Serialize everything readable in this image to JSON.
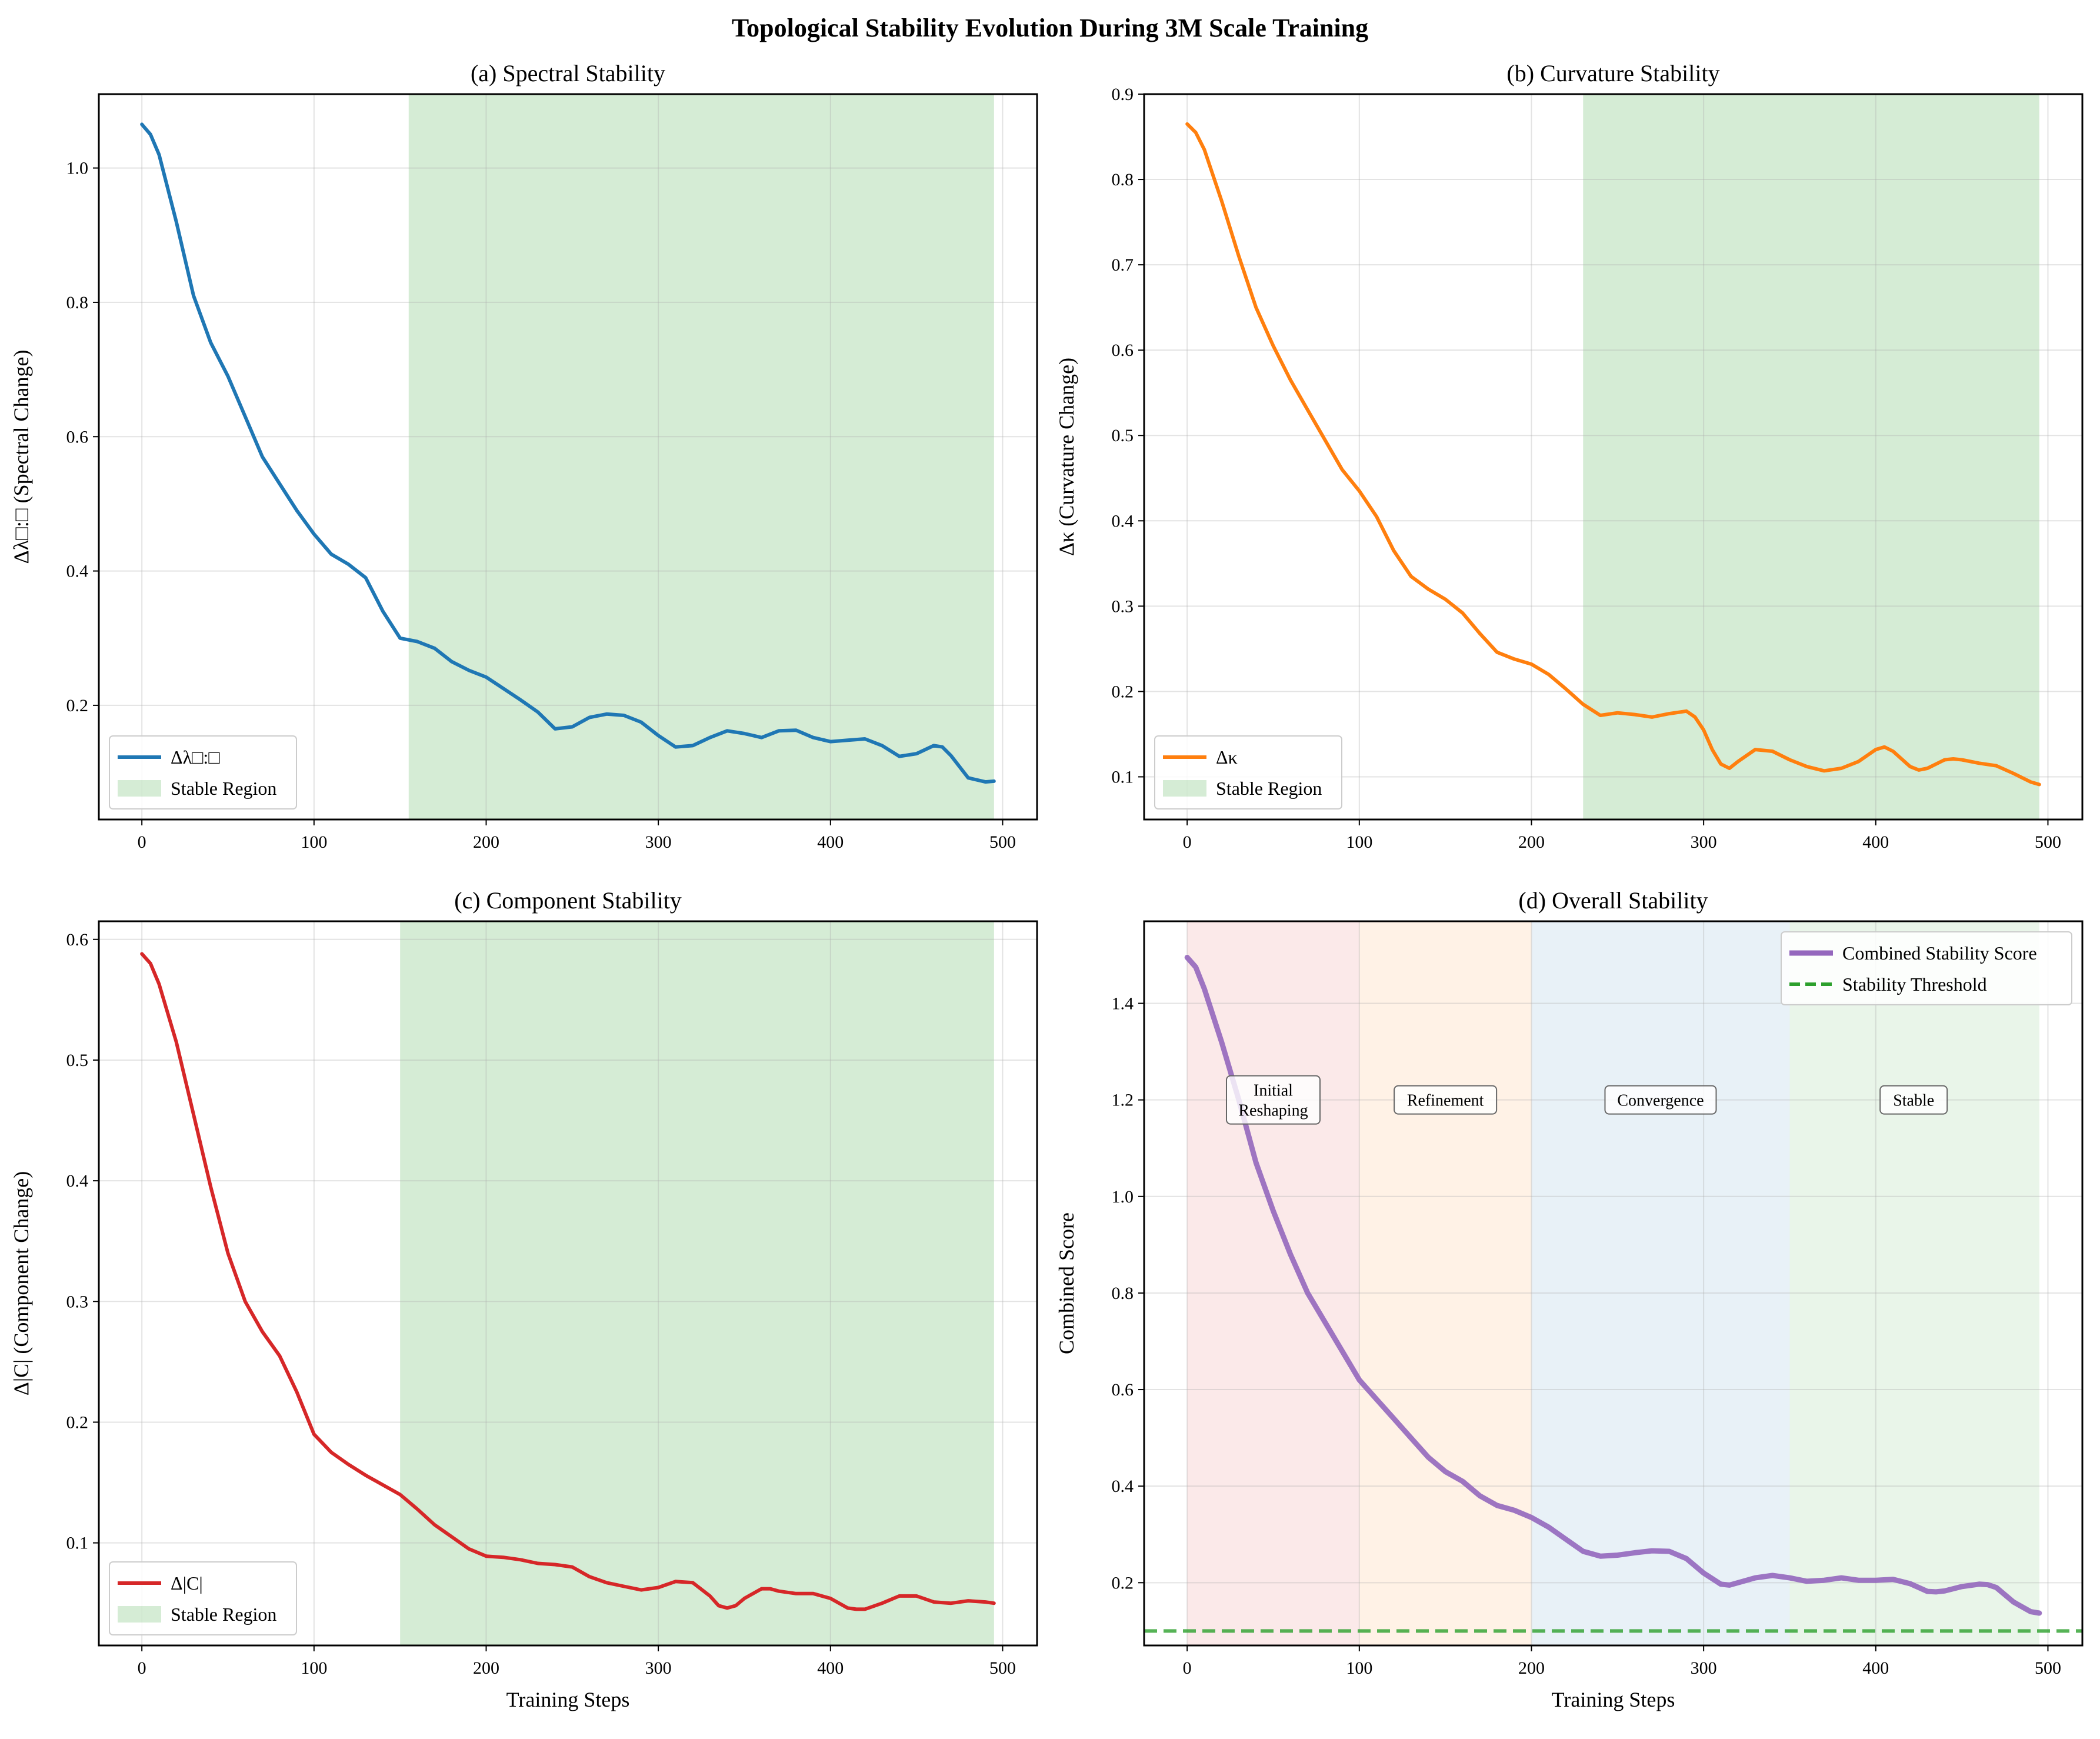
{
  "figure": {
    "suptitle": "Topological Stability Evolution During 3M Scale Training"
  },
  "chart_data": [
    {
      "type": "line",
      "title": "(a) Spectral Stability",
      "xlabel": "",
      "ylabel": "Δλ□:□ (Spectral Change)",
      "xlim": [
        -25,
        520
      ],
      "ylim": [
        0.03,
        1.11
      ],
      "xticks": [
        "0",
        "100",
        "200",
        "300",
        "400",
        "500"
      ],
      "yticks": [
        "0.2",
        "0.4",
        "0.6",
        "0.8",
        "1.0"
      ],
      "grid": true,
      "legend_position": "lower-left",
      "series": [
        {
          "name": "Δλ□:□",
          "color": "#1f77b4",
          "x": [
            0,
            5,
            10,
            20,
            30,
            40,
            50,
            60,
            70,
            80,
            90,
            100,
            110,
            120,
            130,
            140,
            150,
            160,
            170,
            180,
            190,
            200,
            210,
            220,
            230,
            240,
            250,
            260,
            270,
            280,
            290,
            300,
            310,
            320,
            330,
            340,
            350,
            360,
            370,
            380,
            390,
            400,
            410,
            420,
            430,
            440,
            450,
            460,
            465,
            470,
            480,
            490,
            495
          ],
          "y": [
            1.065,
            1.05,
            1.02,
            0.92,
            0.81,
            0.74,
            0.69,
            0.63,
            0.57,
            0.53,
            0.49,
            0.455,
            0.425,
            0.41,
            0.39,
            0.34,
            0.3,
            0.295,
            0.285,
            0.265,
            0.252,
            0.242,
            0.225,
            0.208,
            0.19,
            0.165,
            0.168,
            0.182,
            0.187,
            0.185,
            0.175,
            0.155,
            0.138,
            0.14,
            0.152,
            0.162,
            0.158,
            0.152,
            0.162,
            0.163,
            0.152,
            0.146,
            0.148,
            0.15,
            0.14,
            0.124,
            0.128,
            0.14,
            0.138,
            0.125,
            0.092,
            0.086,
            0.087
          ]
        }
      ],
      "shaded_regions": [
        {
          "name": "Stable Region",
          "x0": 155,
          "x1": 495,
          "color": "#2ca02c"
        }
      ]
    },
    {
      "type": "line",
      "title": "(b) Curvature Stability",
      "xlabel": "",
      "ylabel": "Δκ (Curvature Change)",
      "xlim": [
        -25,
        520
      ],
      "ylim": [
        0.05,
        0.9
      ],
      "xticks": [
        "0",
        "100",
        "200",
        "300",
        "400",
        "500"
      ],
      "yticks": [
        "0.1",
        "0.2",
        "0.3",
        "0.4",
        "0.5",
        "0.6",
        "0.7",
        "0.8",
        "0.9"
      ],
      "grid": true,
      "legend_position": "lower-left",
      "series": [
        {
          "name": "Δκ",
          "color": "#ff7f0e",
          "x": [
            0,
            5,
            10,
            20,
            30,
            40,
            50,
            60,
            70,
            80,
            90,
            100,
            110,
            120,
            130,
            140,
            150,
            160,
            170,
            180,
            190,
            200,
            210,
            220,
            230,
            240,
            250,
            260,
            270,
            280,
            290,
            295,
            300,
            305,
            310,
            315,
            320,
            330,
            340,
            350,
            360,
            370,
            380,
            390,
            400,
            405,
            410,
            420,
            425,
            430,
            440,
            445,
            450,
            460,
            470,
            480,
            490,
            495
          ],
          "y": [
            0.865,
            0.855,
            0.835,
            0.775,
            0.71,
            0.65,
            0.605,
            0.565,
            0.53,
            0.495,
            0.46,
            0.435,
            0.405,
            0.365,
            0.335,
            0.32,
            0.308,
            0.292,
            0.268,
            0.246,
            0.238,
            0.232,
            0.22,
            0.203,
            0.185,
            0.172,
            0.175,
            0.173,
            0.17,
            0.174,
            0.177,
            0.17,
            0.155,
            0.132,
            0.115,
            0.11,
            0.118,
            0.132,
            0.13,
            0.12,
            0.112,
            0.107,
            0.11,
            0.118,
            0.132,
            0.135,
            0.13,
            0.112,
            0.108,
            0.11,
            0.12,
            0.121,
            0.12,
            0.116,
            0.113,
            0.104,
            0.094,
            0.091
          ]
        }
      ],
      "shaded_regions": [
        {
          "name": "Stable Region",
          "x0": 230,
          "x1": 495,
          "color": "#2ca02c"
        }
      ]
    },
    {
      "type": "line",
      "title": "(c) Component Stability",
      "xlabel": "Training Steps",
      "ylabel": "Δ|C| (Component Change)",
      "xlim": [
        -25,
        520
      ],
      "ylim": [
        0.015,
        0.615
      ],
      "xticks": [
        "0",
        "100",
        "200",
        "300",
        "400",
        "500"
      ],
      "yticks": [
        "0.1",
        "0.2",
        "0.3",
        "0.4",
        "0.5",
        "0.6"
      ],
      "grid": true,
      "legend_position": "lower-left",
      "series": [
        {
          "name": "Δ|C|",
          "color": "#d62728",
          "x": [
            0,
            5,
            10,
            20,
            30,
            40,
            50,
            60,
            70,
            80,
            90,
            100,
            110,
            120,
            130,
            140,
            150,
            160,
            170,
            180,
            190,
            200,
            210,
            220,
            230,
            240,
            250,
            260,
            270,
            280,
            290,
            300,
            310,
            320,
            330,
            335,
            340,
            345,
            350,
            360,
            365,
            370,
            380,
            390,
            400,
            410,
            415,
            420,
            430,
            440,
            450,
            460,
            470,
            480,
            490,
            495
          ],
          "y": [
            0.588,
            0.58,
            0.563,
            0.515,
            0.455,
            0.395,
            0.34,
            0.3,
            0.275,
            0.255,
            0.225,
            0.19,
            0.175,
            0.165,
            0.156,
            0.148,
            0.14,
            0.128,
            0.115,
            0.105,
            0.095,
            0.089,
            0.088,
            0.086,
            0.083,
            0.082,
            0.08,
            0.072,
            0.067,
            0.064,
            0.061,
            0.063,
            0.068,
            0.067,
            0.056,
            0.048,
            0.046,
            0.048,
            0.054,
            0.062,
            0.062,
            0.06,
            0.058,
            0.058,
            0.054,
            0.046,
            0.045,
            0.045,
            0.05,
            0.056,
            0.056,
            0.051,
            0.05,
            0.052,
            0.051,
            0.05
          ]
        }
      ],
      "shaded_regions": [
        {
          "name": "Stable Region",
          "x0": 150,
          "x1": 495,
          "color": "#2ca02c"
        }
      ]
    },
    {
      "type": "line",
      "title": "(d) Overall Stability",
      "xlabel": "Training Steps",
      "ylabel": "Combined Score",
      "xlim": [
        -25,
        520
      ],
      "ylim": [
        0.07,
        1.57
      ],
      "xticks": [
        "0",
        "100",
        "200",
        "300",
        "400",
        "500"
      ],
      "yticks": [
        "0.2",
        "0.4",
        "0.6",
        "0.8",
        "1.0",
        "1.2",
        "1.4"
      ],
      "grid": true,
      "legend_position": "top-right",
      "series": [
        {
          "name": "Combined Stability Score",
          "color": "#9467bd",
          "x": [
            0,
            5,
            10,
            20,
            30,
            40,
            50,
            60,
            70,
            80,
            90,
            100,
            110,
            120,
            130,
            140,
            150,
            160,
            170,
            180,
            190,
            200,
            210,
            220,
            230,
            240,
            250,
            260,
            270,
            280,
            290,
            300,
            310,
            315,
            320,
            330,
            340,
            350,
            360,
            370,
            380,
            390,
            400,
            410,
            420,
            430,
            435,
            440,
            450,
            460,
            465,
            470,
            480,
            490,
            495
          ],
          "y": [
            1.495,
            1.475,
            1.43,
            1.32,
            1.2,
            1.07,
            0.97,
            0.88,
            0.8,
            0.74,
            0.68,
            0.62,
            0.58,
            0.54,
            0.5,
            0.46,
            0.43,
            0.41,
            0.38,
            0.36,
            0.35,
            0.335,
            0.315,
            0.29,
            0.265,
            0.255,
            0.257,
            0.262,
            0.266,
            0.265,
            0.25,
            0.22,
            0.197,
            0.195,
            0.2,
            0.21,
            0.215,
            0.21,
            0.203,
            0.205,
            0.21,
            0.205,
            0.205,
            0.207,
            0.198,
            0.182,
            0.181,
            0.183,
            0.192,
            0.197,
            0.196,
            0.19,
            0.16,
            0.14,
            0.137
          ]
        },
        {
          "name": "Stability Threshold",
          "color": "#2ca02c",
          "style": "dashed",
          "x": [
            -25,
            520
          ],
          "y": [
            0.1,
            0.1
          ]
        }
      ],
      "shaded_regions": [
        {
          "name": "Initial Reshaping",
          "x0": 0,
          "x1": 100,
          "color": "#d62728"
        },
        {
          "name": "Refinement",
          "x0": 100,
          "x1": 200,
          "color": "#ff7f0e"
        },
        {
          "name": "Convergence",
          "x0": 200,
          "x1": 350,
          "color": "#1f77b4"
        },
        {
          "name": "Stable",
          "x0": 350,
          "x1": 495,
          "color": "#2ca02c"
        }
      ],
      "phase_labels": [
        {
          "lines": [
            "Initial",
            "Reshaping"
          ],
          "x": 50,
          "y": 1.2
        },
        {
          "lines": [
            "Refinement"
          ],
          "x": 150,
          "y": 1.2
        },
        {
          "lines": [
            "Convergence"
          ],
          "x": 275,
          "y": 1.2
        },
        {
          "lines": [
            "Stable"
          ],
          "x": 422,
          "y": 1.2
        }
      ]
    }
  ]
}
